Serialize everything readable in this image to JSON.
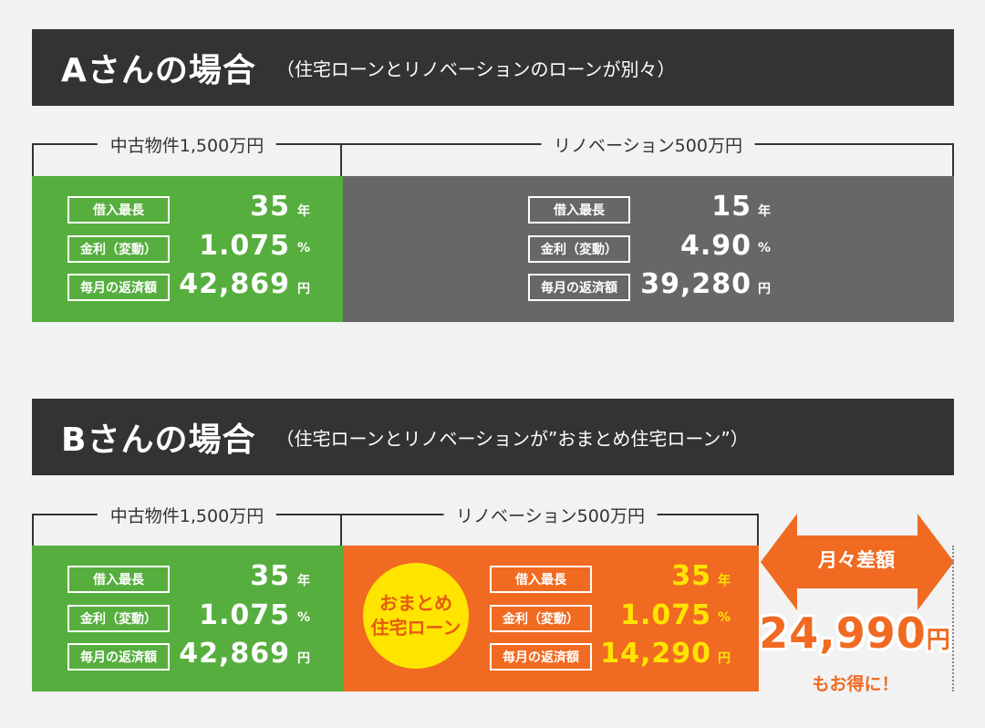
{
  "case_a": {
    "title": "Aさんの場合",
    "subtitle": "（住宅ローンとリノベーションのローンが別々）",
    "left_label": "中古物件1,500万円",
    "right_label": "リノベーション500万円",
    "left": {
      "term_label": "借入最長",
      "term_value": "35",
      "term_unit": "年",
      "rate_label": "金利（変動）",
      "rate_value": "1.075",
      "rate_unit": "%",
      "pay_label": "毎月の返済額",
      "pay_value": "42,869",
      "pay_unit": "円"
    },
    "right": {
      "term_label": "借入最長",
      "term_value": "15",
      "term_unit": "年",
      "rate_label": "金利（変動）",
      "rate_value": "4.90",
      "rate_unit": "%",
      "pay_label": "毎月の返済額",
      "pay_value": "39,280",
      "pay_unit": "円"
    }
  },
  "case_b": {
    "title": "Bさんの場合",
    "subtitle": "（住宅ローンとリノベーションが”おまとめ住宅ローン”）",
    "left_label": "中古物件1,500万円",
    "right_label": "リノベーション500万円",
    "left": {
      "term_label": "借入最長",
      "term_value": "35",
      "term_unit": "年",
      "rate_label": "金利（変動）",
      "rate_value": "1.075",
      "rate_unit": "%",
      "pay_label": "毎月の返済額",
      "pay_value": "42,869",
      "pay_unit": "円"
    },
    "right": {
      "badge_line1": "おまとめ",
      "badge_line2": "住宅ローン",
      "term_label": "借入最長",
      "term_value": "35",
      "term_unit": "年",
      "rate_label": "金利（変動）",
      "rate_value": "1.075",
      "rate_unit": "%",
      "pay_label": "毎月の返済額",
      "pay_value": "14,290",
      "pay_unit": "円"
    },
    "diff": {
      "label": "月々差額",
      "value": "24,990",
      "unit": "円",
      "note": "もお得に！"
    }
  },
  "colors": {
    "header_bg": "#333333",
    "green": "#56ae3e",
    "gray": "#676767",
    "orange": "#f06a22",
    "yellow": "#ffe400",
    "background": "#f2f2f2"
  }
}
